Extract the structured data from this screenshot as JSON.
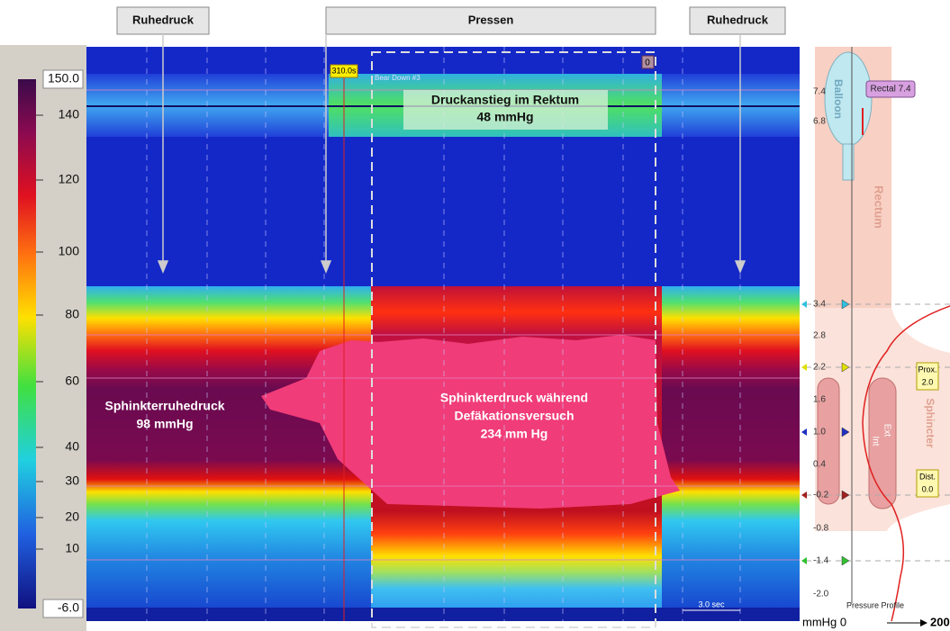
{
  "header": {
    "labels": [
      "Ruhedruck",
      "Pressen",
      "Ruhedruck"
    ]
  },
  "color_scale": {
    "labels": [
      "150.0",
      "140",
      "120",
      "100",
      "80",
      "60",
      "40",
      "30",
      "20",
      "10",
      "-6.0"
    ]
  },
  "plot": {
    "marker_time": "310.0s",
    "event": "Bear Down #3",
    "event_id": "0",
    "scale_bar": "3.0 sec",
    "annotations": [
      {
        "lines": [
          "Druckanstieg im Rektum",
          "48 mmHg"
        ]
      },
      {
        "lines": [
          "Sphinkterruhedruck",
          "98 mmHg"
        ]
      },
      {
        "lines": [
          "Sphinkterdruck während",
          "Defäkationsversuch",
          "234 mm Hg"
        ]
      }
    ]
  },
  "profile": {
    "position_labels": [
      "7.4",
      "6.8",
      "3.4",
      "2.8",
      "2.2",
      "1.6",
      "1.0",
      "0.4",
      "-0.2",
      "-0.8",
      "-1.4",
      "-2.0"
    ],
    "balloon": "Balloon",
    "rectum": "Rectum",
    "rectal": "Rectal 7.4",
    "prox": [
      "Prox.",
      "2.0"
    ],
    "dist": [
      "Dist.",
      "0.0"
    ],
    "sphincter": "Sphincter",
    "ext": "Ext",
    "int": "Int",
    "caption": "Pressure Profile",
    "axis": [
      "mmHg 0",
      "200"
    ]
  }
}
